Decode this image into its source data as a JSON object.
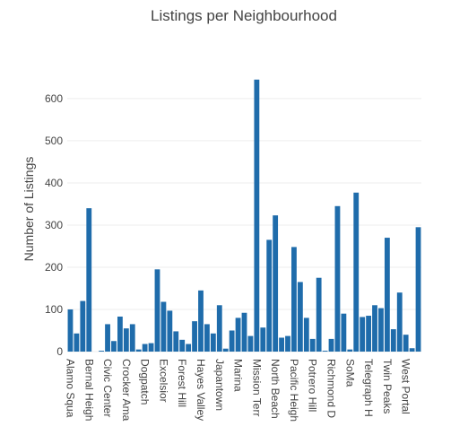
{
  "chart_data": {
    "type": "bar",
    "title": "Listings per Neighbourhood",
    "y_label": "Number of Listings",
    "categories": [
      "Alamo Squa",
      null,
      null,
      "Bernal Heigh",
      null,
      null,
      "Civic Center",
      null,
      null,
      "Crocker Ama",
      null,
      null,
      "Dogpatch",
      null,
      null,
      "Excelsior",
      null,
      null,
      "Forest Hill",
      null,
      null,
      "Hayes Valley",
      null,
      null,
      "Japantown",
      null,
      null,
      "Marina",
      null,
      null,
      "Mission Terr",
      null,
      null,
      "North Beach",
      null,
      null,
      "Pacific Heigh",
      null,
      null,
      "Potrero Hill",
      null,
      null,
      "Richmond D",
      null,
      null,
      "SoMa",
      null,
      null,
      "Telegraph H",
      null,
      null,
      "Twin Peaks",
      null,
      null,
      "West Portal",
      null,
      null
    ],
    "values": [
      100,
      43,
      120,
      340,
      0,
      2,
      65,
      25,
      83,
      55,
      65,
      5,
      18,
      20,
      195,
      118,
      97,
      48,
      28,
      18,
      72,
      145,
      65,
      43,
      110,
      7,
      50,
      80,
      92,
      37,
      645,
      57,
      265,
      323,
      33,
      37,
      248,
      165,
      80,
      30,
      175,
      2,
      30,
      345,
      90,
      5,
      377,
      82,
      85,
      110,
      103,
      270,
      53,
      140,
      40,
      8,
      295
    ],
    "color": "#1f6cab",
    "ylim": [
      0,
      670
    ],
    "yticks": [
      0,
      100,
      200,
      300,
      400,
      500,
      600
    ],
    "grid": true
  }
}
